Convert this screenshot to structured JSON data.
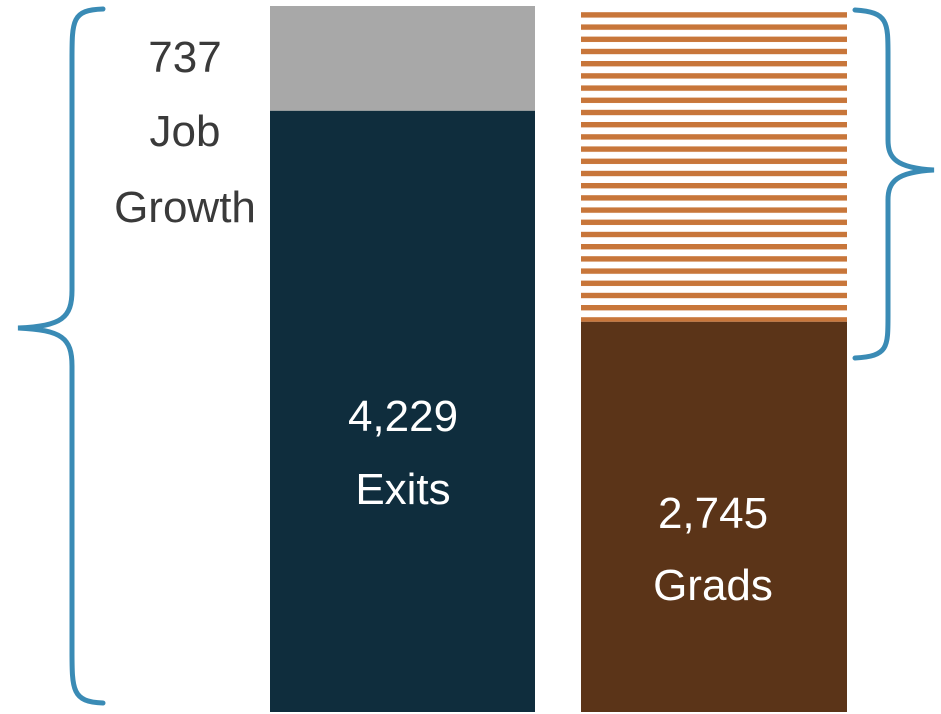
{
  "chart_data": {
    "type": "bar",
    "stacked": true,
    "bars": [
      {
        "segments": [
          {
            "key": "job_growth",
            "value": 737,
            "color": "#a8a8a8",
            "fill": "solid"
          },
          {
            "key": "exits",
            "value": 4229,
            "color": "#0f2d3d",
            "fill": "solid"
          }
        ]
      },
      {
        "segments": [
          {
            "key": "gap",
            "value": 2221,
            "color": "#c8763a",
            "fill": "horizontal-stripes"
          },
          {
            "key": "grads",
            "value": 2745,
            "color": "#5b3418",
            "fill": "solid"
          }
        ]
      }
    ],
    "labels": {
      "job_growth": [
        "737",
        "Job",
        "Growth"
      ],
      "exits": [
        "4,229",
        "Exits"
      ],
      "grads": [
        "2,745",
        "Grads"
      ]
    },
    "annotations": [
      {
        "type": "brace",
        "side": "left",
        "spans": "bar-1 total"
      },
      {
        "type": "brace",
        "side": "right",
        "spans": "bar-2 gap"
      }
    ],
    "grid": false,
    "legend": "none",
    "colors": {
      "job_growth": "#a8a8a8",
      "exits": "#0f2d3d",
      "gap": "#c8763a",
      "grads": "#5b3418",
      "brace": "#3a8bb5",
      "label_dark": "#3a3a3a",
      "label_light": "#ffffff"
    }
  }
}
